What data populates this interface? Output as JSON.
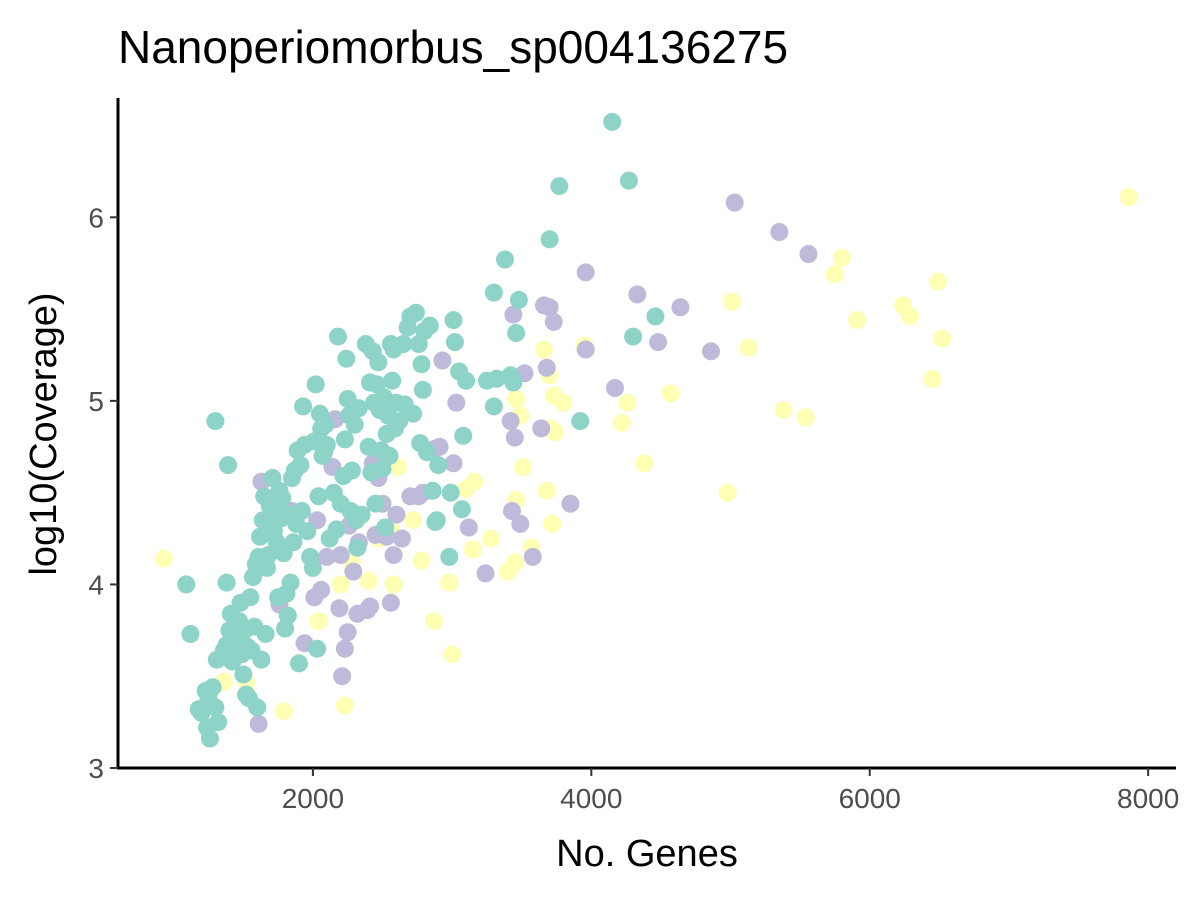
{
  "chart_data": {
    "type": "scatter",
    "title": "Nanoperiomorbus_sp004136275",
    "xlabel": "No. Genes",
    "ylabel": "log10(Coverage)",
    "xlim": [
      600,
      8200
    ],
    "ylim": [
      3.0,
      6.65
    ],
    "x_ticks": [
      2000,
      4000,
      6000,
      8000
    ],
    "x_tick_labels": [
      "2000",
      "4000",
      "6000",
      "8000"
    ],
    "y_ticks": [
      3,
      4,
      5,
      6
    ],
    "y_tick_labels": [
      "3",
      "4",
      "5",
      "6"
    ],
    "grid": false,
    "legend": "none",
    "series": [
      {
        "color": "#ffffb3",
        "points": [
          [
            930,
            4.14
          ],
          [
            1360,
            3.47
          ],
          [
            1520,
            3.47
          ],
          [
            1530,
            3.4
          ],
          [
            1790,
            3.31
          ],
          [
            2040,
            3.8
          ],
          [
            2230,
            3.34
          ],
          [
            2200,
            4.0
          ],
          [
            2280,
            4.12
          ],
          [
            2400,
            4.02
          ],
          [
            2480,
            4.25
          ],
          [
            2560,
            4.3
          ],
          [
            2580,
            4.0
          ],
          [
            2610,
            4.64
          ],
          [
            2720,
            4.35
          ],
          [
            2780,
            4.13
          ],
          [
            2870,
            3.8
          ],
          [
            2980,
            4.01
          ],
          [
            3000,
            3.62
          ],
          [
            3100,
            4.52
          ],
          [
            3160,
            4.56
          ],
          [
            3150,
            4.19
          ],
          [
            3280,
            4.25
          ],
          [
            3400,
            4.07
          ],
          [
            3450,
            4.12
          ],
          [
            3460,
            4.46
          ],
          [
            3460,
            5.01
          ],
          [
            3490,
            4.92
          ],
          [
            3510,
            4.64
          ],
          [
            3570,
            4.2
          ],
          [
            3660,
            5.28
          ],
          [
            3680,
            4.51
          ],
          [
            3700,
            5.14
          ],
          [
            3700,
            4.85
          ],
          [
            3720,
            4.33
          ],
          [
            3730,
            5.03
          ],
          [
            3740,
            4.83
          ],
          [
            3800,
            4.99
          ],
          [
            3950,
            5.3
          ],
          [
            4220,
            4.88
          ],
          [
            4260,
            4.99
          ],
          [
            4380,
            4.66
          ],
          [
            4570,
            5.04
          ],
          [
            4980,
            4.5
          ],
          [
            5010,
            5.54
          ],
          [
            5130,
            5.29
          ],
          [
            5380,
            4.95
          ],
          [
            5540,
            4.91
          ],
          [
            5750,
            5.69
          ],
          [
            5800,
            5.78
          ],
          [
            5910,
            5.44
          ],
          [
            6240,
            5.52
          ],
          [
            6290,
            5.46
          ],
          [
            6450,
            5.12
          ],
          [
            6490,
            5.65
          ],
          [
            6520,
            5.34
          ],
          [
            7860,
            6.11
          ]
        ]
      },
      {
        "color": "#bebada",
        "points": [
          [
            1610,
            3.24
          ],
          [
            1630,
            4.56
          ],
          [
            1760,
            3.89
          ],
          [
            1850,
            4.4
          ],
          [
            1940,
            3.68
          ],
          [
            2010,
            3.93
          ],
          [
            2030,
            4.35
          ],
          [
            2060,
            3.97
          ],
          [
            2100,
            4.15
          ],
          [
            2140,
            4.64
          ],
          [
            2160,
            4.9
          ],
          [
            2190,
            3.87
          ],
          [
            2200,
            4.16
          ],
          [
            2210,
            3.5
          ],
          [
            2230,
            3.65
          ],
          [
            2250,
            3.74
          ],
          [
            2260,
            4.32
          ],
          [
            2290,
            4.07
          ],
          [
            2320,
            3.84
          ],
          [
            2330,
            4.23
          ],
          [
            2390,
            3.86
          ],
          [
            2410,
            3.88
          ],
          [
            2430,
            4.66
          ],
          [
            2450,
            4.27
          ],
          [
            2470,
            4.58
          ],
          [
            2500,
            4.44
          ],
          [
            2530,
            4.26
          ],
          [
            2560,
            3.9
          ],
          [
            2580,
            4.16
          ],
          [
            2600,
            4.38
          ],
          [
            2640,
            4.25
          ],
          [
            2700,
            4.48
          ],
          [
            2760,
            4.48
          ],
          [
            2790,
            4.5
          ],
          [
            2880,
            4.74
          ],
          [
            2910,
            4.75
          ],
          [
            2930,
            5.22
          ],
          [
            3010,
            4.66
          ],
          [
            3030,
            4.99
          ],
          [
            3120,
            4.31
          ],
          [
            3240,
            4.06
          ],
          [
            3420,
            4.89
          ],
          [
            3430,
            4.4
          ],
          [
            3440,
            5.47
          ],
          [
            3450,
            4.8
          ],
          [
            3490,
            4.33
          ],
          [
            3520,
            5.15
          ],
          [
            3580,
            4.15
          ],
          [
            3640,
            4.85
          ],
          [
            3660,
            5.52
          ],
          [
            3680,
            5.18
          ],
          [
            3700,
            5.51
          ],
          [
            3730,
            5.43
          ],
          [
            3850,
            4.44
          ],
          [
            3960,
            5.28
          ],
          [
            3960,
            5.7
          ],
          [
            4170,
            5.07
          ],
          [
            4330,
            5.58
          ],
          [
            4480,
            5.32
          ],
          [
            4640,
            5.51
          ],
          [
            4860,
            5.27
          ],
          [
            5030,
            6.08
          ],
          [
            5350,
            5.92
          ],
          [
            5560,
            5.8
          ]
        ]
      },
      {
        "color": "#8dd3c7",
        "points": [
          [
            1180,
            3.32
          ],
          [
            1200,
            3.3
          ],
          [
            1230,
            3.42
          ],
          [
            1240,
            3.22
          ],
          [
            1250,
            3.37
          ],
          [
            1260,
            3.16
          ],
          [
            1280,
            3.44
          ],
          [
            1300,
            3.33
          ],
          [
            1320,
            3.25
          ],
          [
            1250,
            3.4
          ],
          [
            1310,
            3.59
          ],
          [
            1360,
            3.64
          ],
          [
            1380,
            3.67
          ],
          [
            1400,
            3.75
          ],
          [
            1410,
            3.84
          ],
          [
            1420,
            3.58
          ],
          [
            1430,
            3.7
          ],
          [
            1440,
            3.62
          ],
          [
            1450,
            3.74
          ],
          [
            1460,
            3.64
          ],
          [
            1470,
            3.8
          ],
          [
            1480,
            3.9
          ],
          [
            1490,
            3.62
          ],
          [
            1500,
            3.51
          ],
          [
            1510,
            3.75
          ],
          [
            1520,
            3.4
          ],
          [
            1530,
            3.66
          ],
          [
            1540,
            3.38
          ],
          [
            1550,
            3.93
          ],
          [
            1560,
            3.64
          ],
          [
            1570,
            4.04
          ],
          [
            1580,
            3.77
          ],
          [
            1590,
            4.11
          ],
          [
            1600,
            3.33
          ],
          [
            1610,
            4.15
          ],
          [
            1620,
            4.26
          ],
          [
            1630,
            3.59
          ],
          [
            1640,
            4.35
          ],
          [
            1650,
            4.48
          ],
          [
            1660,
            3.73
          ],
          [
            1670,
            4.09
          ],
          [
            1680,
            4.16
          ],
          [
            1690,
            4.43
          ],
          [
            1700,
            4.37
          ],
          [
            1710,
            4.58
          ],
          [
            1720,
            4.29
          ],
          [
            1730,
            4.41
          ],
          [
            1740,
            4.23
          ],
          [
            1750,
            3.93
          ],
          [
            1760,
            4.51
          ],
          [
            1770,
            4.36
          ],
          [
            1780,
            4.47
          ],
          [
            1790,
            4.17
          ],
          [
            1800,
            3.76
          ],
          [
            1810,
            3.95
          ],
          [
            1820,
            3.83
          ],
          [
            1830,
            4.38
          ],
          [
            1840,
            4.01
          ],
          [
            1850,
            4.58
          ],
          [
            1860,
            4.23
          ],
          [
            1870,
            4.62
          ],
          [
            1880,
            4.33
          ],
          [
            1890,
            4.73
          ],
          [
            1900,
            3.57
          ],
          [
            1910,
            4.65
          ],
          [
            1920,
            4.4
          ],
          [
            1930,
            4.97
          ],
          [
            1940,
            4.76
          ],
          [
            1960,
            4.29
          ],
          [
            1980,
            4.15
          ],
          [
            2000,
            4.09
          ],
          [
            2010,
            4.78
          ],
          [
            2020,
            5.09
          ],
          [
            2030,
            3.65
          ],
          [
            2040,
            4.48
          ],
          [
            2050,
            4.93
          ],
          [
            2060,
            4.85
          ],
          [
            2070,
            4.7
          ],
          [
            2080,
            4.72
          ],
          [
            2090,
            4.87
          ],
          [
            2100,
            4.76
          ],
          [
            2120,
            4.25
          ],
          [
            2150,
            4.5
          ],
          [
            2170,
            4.3
          ],
          [
            2180,
            5.35
          ],
          [
            2200,
            4.44
          ],
          [
            2220,
            4.59
          ],
          [
            2230,
            4.79
          ],
          [
            2240,
            5.23
          ],
          [
            2250,
            5.01
          ],
          [
            2260,
            4.92
          ],
          [
            2270,
            4.4
          ],
          [
            2280,
            4.62
          ],
          [
            2300,
            4.87
          ],
          [
            2310,
            4.35
          ],
          [
            2320,
            4.2
          ],
          [
            2330,
            4.96
          ],
          [
            2350,
            4.38
          ],
          [
            2380,
            5.31
          ],
          [
            2400,
            4.75
          ],
          [
            2410,
            5.1
          ],
          [
            2420,
            4.61
          ],
          [
            2430,
            5.27
          ],
          [
            2440,
            4.99
          ],
          [
            2450,
            4.44
          ],
          [
            2460,
            5.09
          ],
          [
            2470,
            5.21
          ],
          [
            2480,
            4.95
          ],
          [
            2490,
            4.73
          ],
          [
            2500,
            4.63
          ],
          [
            2510,
            5.02
          ],
          [
            2520,
            4.31
          ],
          [
            2530,
            4.82
          ],
          [
            2540,
            4.92
          ],
          [
            2550,
            4.7
          ],
          [
            2560,
            5.31
          ],
          [
            2570,
            5.11
          ],
          [
            2580,
            5.28
          ],
          [
            2590,
            4.85
          ],
          [
            2600,
            4.99
          ],
          [
            2620,
            4.89
          ],
          [
            2650,
            5.31
          ],
          [
            2660,
            4.98
          ],
          [
            2680,
            5.4
          ],
          [
            2700,
            5.46
          ],
          [
            2720,
            4.93
          ],
          [
            2740,
            5.48
          ],
          [
            2760,
            5.31
          ],
          [
            2770,
            4.77
          ],
          [
            2780,
            5.2
          ],
          [
            2790,
            5.06
          ],
          [
            2800,
            5.38
          ],
          [
            2820,
            4.72
          ],
          [
            2840,
            5.41
          ],
          [
            2860,
            4.51
          ],
          [
            2880,
            4.34
          ],
          [
            2890,
            4.35
          ],
          [
            2900,
            4.65
          ],
          [
            2980,
            4.15
          ],
          [
            2990,
            4.5
          ],
          [
            3010,
            5.44
          ],
          [
            3020,
            5.32
          ],
          [
            3050,
            5.16
          ],
          [
            3070,
            4.41
          ],
          [
            3080,
            4.81
          ],
          [
            3100,
            5.11
          ],
          [
            3250,
            5.11
          ],
          [
            3300,
            4.97
          ],
          [
            3300,
            5.59
          ],
          [
            3320,
            5.12
          ],
          [
            3380,
            5.77
          ],
          [
            3420,
            5.14
          ],
          [
            3440,
            5.1
          ],
          [
            3460,
            5.37
          ],
          [
            3480,
            5.55
          ],
          [
            3700,
            5.88
          ],
          [
            3770,
            6.17
          ],
          [
            3920,
            4.89
          ],
          [
            4150,
            6.52
          ],
          [
            4270,
            6.2
          ],
          [
            4300,
            5.35
          ],
          [
            4460,
            5.46
          ],
          [
            1090,
            4.0
          ],
          [
            1120,
            3.73
          ],
          [
            1300,
            4.89
          ],
          [
            1390,
            4.65
          ],
          [
            1380,
            4.01
          ]
        ]
      }
    ]
  }
}
